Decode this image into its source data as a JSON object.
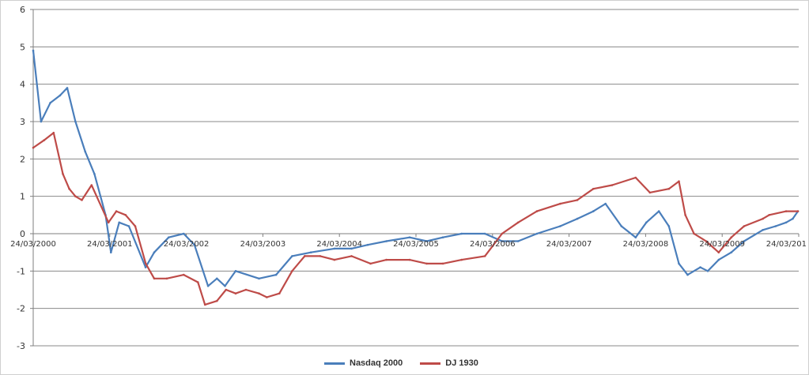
{
  "chart_data": {
    "type": "line",
    "ylim": [
      -3,
      6
    ],
    "yticks": [
      -3,
      -2,
      -1,
      0,
      1,
      2,
      3,
      4,
      5,
      6
    ],
    "grid": true,
    "legend_position": "bottom",
    "x_tick_labels": [
      "24/03/2000",
      "24/03/2001",
      "24/03/2002",
      "24/03/2003",
      "24/03/2004",
      "24/03/2005",
      "24/03/2006",
      "24/03/2007",
      "24/03/2008",
      "24/03/2009",
      "24/03/201"
    ],
    "x_range": [
      "2000-03-24",
      "2010-05-24"
    ],
    "series": [
      {
        "name": "Nasdaq 2000",
        "color": "#4a7ebb",
        "x": [
          "2000-03-24",
          "2000-05-01",
          "2000-06-15",
          "2000-08-01",
          "2000-09-05",
          "2000-10-15",
          "2000-12-01",
          "2001-01-15",
          "2001-03-10",
          "2001-04-05",
          "2001-05-15",
          "2001-07-01",
          "2001-09-20",
          "2001-11-01",
          "2002-01-10",
          "2002-03-24",
          "2002-05-15",
          "2002-07-20",
          "2002-09-01",
          "2002-10-10",
          "2002-12-01",
          "2003-03-24",
          "2003-06-15",
          "2003-09-01",
          "2003-12-01",
          "2004-03-24",
          "2004-06-15",
          "2004-09-01",
          "2004-12-01",
          "2005-03-24",
          "2005-06-15",
          "2005-09-01",
          "2005-12-01",
          "2006-03-24",
          "2006-06-15",
          "2006-09-01",
          "2006-12-01",
          "2007-03-24",
          "2007-06-15",
          "2007-09-01",
          "2007-10-30",
          "2008-01-15",
          "2008-03-24",
          "2008-05-15",
          "2008-07-15",
          "2008-09-01",
          "2008-10-20",
          "2008-12-01",
          "2009-02-01",
          "2009-03-09",
          "2009-05-01",
          "2009-07-01",
          "2009-09-01",
          "2009-12-01",
          "2010-02-01",
          "2010-03-24",
          "2010-04-25",
          "2010-05-20"
        ],
        "values": [
          4.9,
          3.0,
          3.5,
          3.7,
          3.9,
          3.0,
          2.2,
          1.6,
          0.5,
          -0.5,
          0.3,
          0.2,
          -0.9,
          -0.5,
          -0.1,
          0.0,
          -0.3,
          -1.4,
          -1.2,
          -1.4,
          -1.0,
          -1.2,
          -1.1,
          -0.6,
          -0.5,
          -0.4,
          -0.4,
          -0.3,
          -0.2,
          -0.1,
          -0.2,
          -0.1,
          0.0,
          0.0,
          -0.2,
          -0.2,
          0.0,
          0.2,
          0.4,
          0.6,
          0.8,
          0.2,
          -0.1,
          0.3,
          0.6,
          0.2,
          -0.8,
          -1.1,
          -0.9,
          -1.0,
          -0.7,
          -0.5,
          -0.2,
          0.1,
          0.2,
          0.3,
          0.4,
          0.6
        ]
      },
      {
        "name": "DJ 1930",
        "color": "#be4b48",
        "x": [
          "2000-03-24",
          "2000-05-15",
          "2000-07-01",
          "2000-08-15",
          "2000-09-15",
          "2000-10-15",
          "2000-11-15",
          "2001-01-01",
          "2001-03-24",
          "2001-05-01",
          "2001-06-15",
          "2001-08-01",
          "2001-09-21",
          "2001-11-01",
          "2002-01-01",
          "2002-03-24",
          "2002-06-01",
          "2002-07-05",
          "2002-09-01",
          "2002-10-15",
          "2002-12-01",
          "2003-01-20",
          "2003-03-24",
          "2003-05-01",
          "2003-07-01",
          "2003-09-01",
          "2003-11-01",
          "2004-01-15",
          "2004-03-24",
          "2004-06-15",
          "2004-09-15",
          "2004-12-01",
          "2005-03-24",
          "2005-06-15",
          "2005-09-01",
          "2005-12-01",
          "2006-03-24",
          "2006-06-15",
          "2006-09-01",
          "2006-12-01",
          "2007-03-24",
          "2007-06-15",
          "2007-09-01",
          "2007-12-01",
          "2008-03-24",
          "2008-06-01",
          "2008-09-01",
          "2008-10-20",
          "2008-11-20",
          "2009-01-01",
          "2009-03-01",
          "2009-05-01",
          "2009-07-01",
          "2009-09-01",
          "2009-12-01",
          "2010-01-01",
          "2010-03-24",
          "2010-05-20"
        ],
        "values": [
          2.3,
          2.5,
          2.7,
          1.6,
          1.2,
          1.0,
          0.9,
          1.3,
          0.3,
          0.6,
          0.5,
          0.2,
          -0.8,
          -1.2,
          -1.2,
          -1.1,
          -1.3,
          -1.9,
          -1.8,
          -1.5,
          -1.6,
          -1.5,
          -1.6,
          -1.7,
          -1.6,
          -1.0,
          -0.6,
          -0.6,
          -0.7,
          -0.6,
          -0.8,
          -0.7,
          -0.7,
          -0.8,
          -0.8,
          -0.7,
          -0.6,
          0.0,
          0.3,
          0.6,
          0.8,
          0.9,
          1.2,
          1.3,
          1.5,
          1.1,
          1.2,
          1.4,
          0.5,
          0.0,
          -0.2,
          -0.5,
          -0.1,
          0.2,
          0.4,
          0.5,
          0.6,
          0.6
        ]
      }
    ]
  }
}
